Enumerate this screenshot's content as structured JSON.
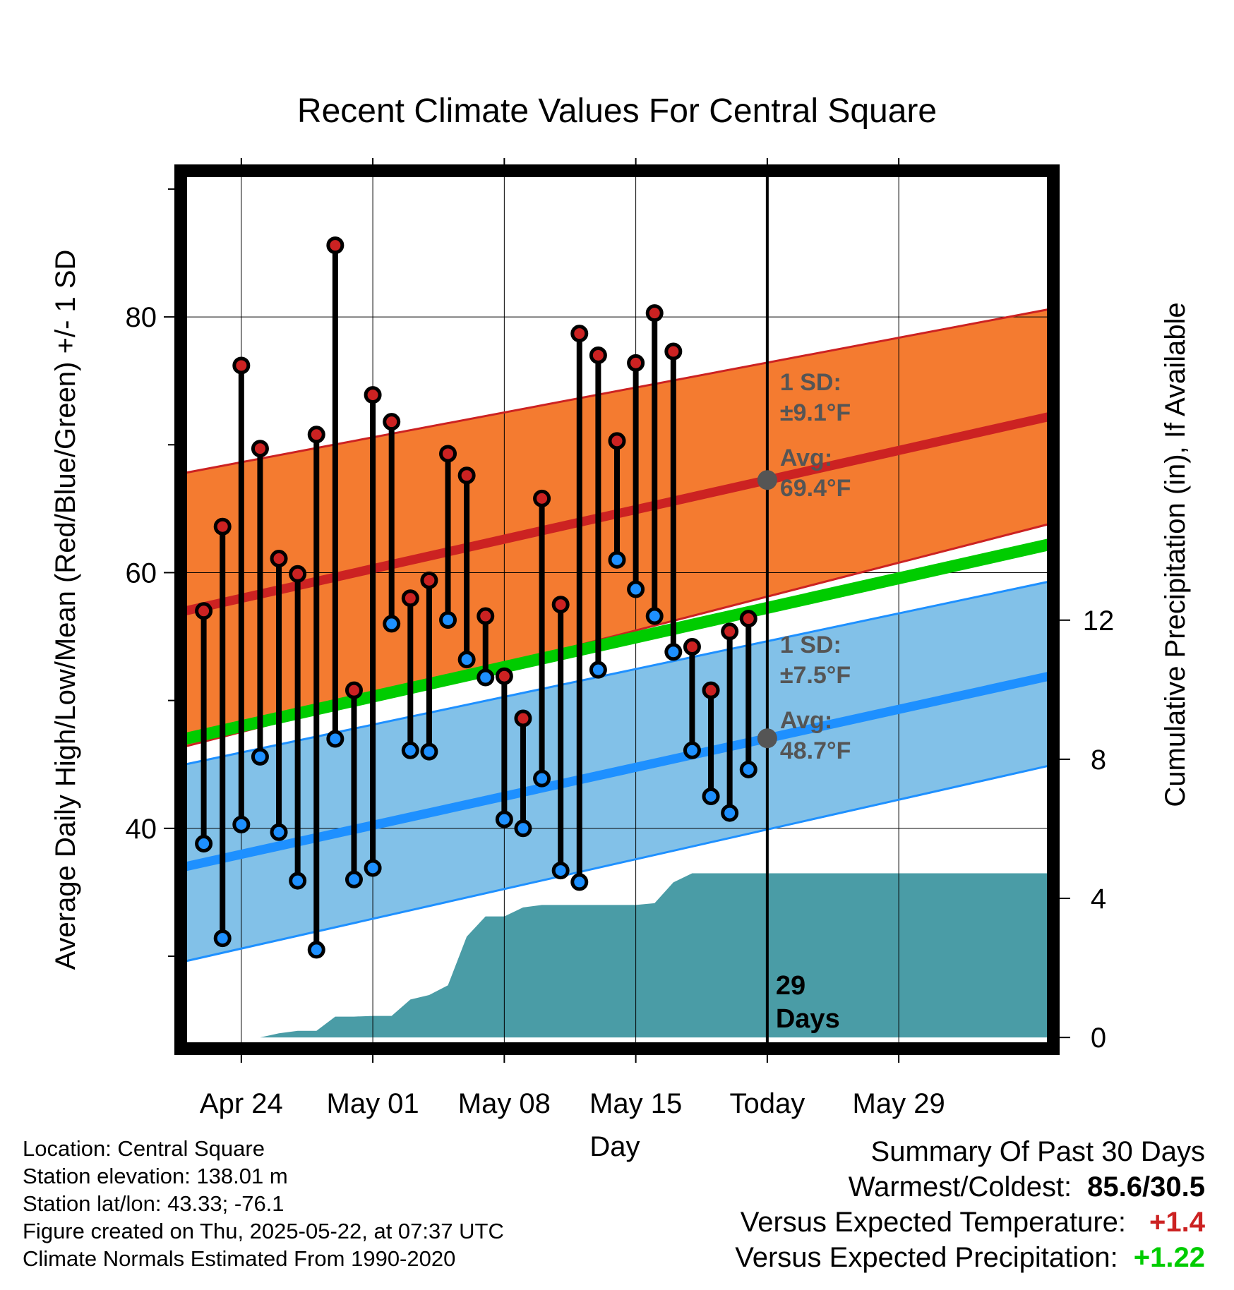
{
  "title": "Recent Climate Values For Central Square",
  "footer": {
    "location": "Location: Central Square",
    "elevation": "Station elevation: 138.01 m",
    "latlon": "Station lat/lon: 43.33; -76.1",
    "created": "Figure created on Thu, 2025-05-22, at 07:37 UTC",
    "normals": "Climate Normals Estimated From 1990-2020"
  },
  "summary": {
    "heading": "Summary Of Past 30 Days",
    "warmest_label": "Warmest/Coldest:",
    "warmest_value": "85.6/30.5",
    "temp_label": "Versus Expected Temperature:",
    "temp_value": "+1.4",
    "precip_label": "Versus Expected Precipitation:",
    "precip_value": "+1.22"
  },
  "chart_data": {
    "type": "line",
    "title": "Recent Climate Values For Central Square",
    "xlabel": "Day",
    "ylabel": "Average Daily High/Low/Mean (Red/Blue/Green) +/- 1 SD",
    "y2label": "Cumulative Precipitation (in), If Available",
    "xlim": [
      -3,
      43
    ],
    "ylim": [
      23.1,
      91.1
    ],
    "y2lim": [
      -0.2,
      24.8
    ],
    "x_ticks": [
      {
        "x": 0,
        "label": "Apr 24"
      },
      {
        "x": 7,
        "label": "May 01"
      },
      {
        "x": 14,
        "label": "May 08"
      },
      {
        "x": 21,
        "label": "May 15"
      },
      {
        "x": 28,
        "label": "Today"
      },
      {
        "x": 35,
        "label": "May 29"
      }
    ],
    "y_ticks": [
      40,
      60,
      80
    ],
    "y2_ticks": [
      0,
      4,
      8,
      12
    ],
    "grid": true,
    "today_x": 28,
    "today_label": [
      "29",
      "Days"
    ],
    "daily": {
      "x": [
        -2,
        -1,
        0,
        1,
        2,
        3,
        4,
        5,
        6,
        7,
        8,
        9,
        10,
        11,
        12,
        13,
        14,
        15,
        16,
        17,
        18,
        19,
        20,
        21,
        22,
        23,
        24,
        25,
        26,
        27
      ],
      "high": [
        57.0,
        63.6,
        76.2,
        69.7,
        61.1,
        59.9,
        70.8,
        85.6,
        50.8,
        73.9,
        71.8,
        58.0,
        59.4,
        69.3,
        67.6,
        56.6,
        51.9,
        48.6,
        65.8,
        57.5,
        78.7,
        77.0,
        70.3,
        76.4,
        80.3,
        77.3,
        54.2,
        50.8,
        55.4,
        56.4
      ],
      "low": [
        38.8,
        31.4,
        40.3,
        45.6,
        39.7,
        35.9,
        30.5,
        47.0,
        36.0,
        36.9,
        56.0,
        46.1,
        46.0,
        56.3,
        53.2,
        51.8,
        40.7,
        40.0,
        43.9,
        36.7,
        35.8,
        52.4,
        61.0,
        58.7,
        56.6,
        53.8,
        46.1,
        42.5,
        41.2,
        44.6
      ]
    },
    "normals": {
      "x": [
        -3,
        43
      ],
      "high_avg": [
        57.0,
        72.2
      ],
      "high_upper": [
        67.8,
        80.6
      ],
      "high_lower": [
        46.4,
        63.8
      ],
      "mean_avg": [
        47.0,
        62.2
      ],
      "low_avg": [
        37.0,
        51.9
      ],
      "low_upper": [
        45.0,
        59.3
      ],
      "low_lower": [
        29.6,
        44.9
      ]
    },
    "series": [
      {
        "name": "High",
        "color": "#cc2222"
      },
      {
        "name": "Low",
        "color": "#1e90ff"
      },
      {
        "name": "Mean",
        "color": "#00cc00"
      }
    ],
    "precip": {
      "x": [
        -3,
        -2,
        -1,
        0,
        1,
        2,
        3,
        4,
        5,
        6,
        7,
        8,
        9,
        10,
        11,
        12,
        13,
        14,
        15,
        16,
        17,
        18,
        19,
        20,
        21,
        22,
        23,
        24,
        25,
        26,
        27,
        28,
        43
      ],
      "y": [
        0.0,
        0.0,
        0.0,
        0.0,
        0.0,
        0.12,
        0.19,
        0.19,
        0.6,
        0.6,
        0.62,
        0.62,
        1.09,
        1.22,
        1.5,
        2.9,
        3.48,
        3.48,
        3.74,
        3.81,
        3.81,
        3.81,
        3.81,
        3.81,
        3.81,
        3.86,
        4.46,
        4.72,
        4.72,
        4.72,
        4.72,
        4.72,
        4.72
      ]
    },
    "annotations": {
      "high_sd": [
        "1 SD:",
        "±9.1°F"
      ],
      "high_avg": [
        "Avg:",
        "69.4°F"
      ],
      "low_sd": [
        "1 SD:",
        "±7.5°F"
      ],
      "low_avg": [
        "Avg:",
        "48.7°F"
      ]
    },
    "colors": {
      "high_band": "#f47b30",
      "high_line": "#cc2222",
      "mean_line": "#00cc00",
      "low_band": "#82c1e8",
      "low_line": "#1e90ff",
      "precip_fill": "#4a9ca6",
      "annotation_text": "#555555",
      "high_dot": "#cc2222",
      "low_dot": "#1e90ff"
    }
  }
}
